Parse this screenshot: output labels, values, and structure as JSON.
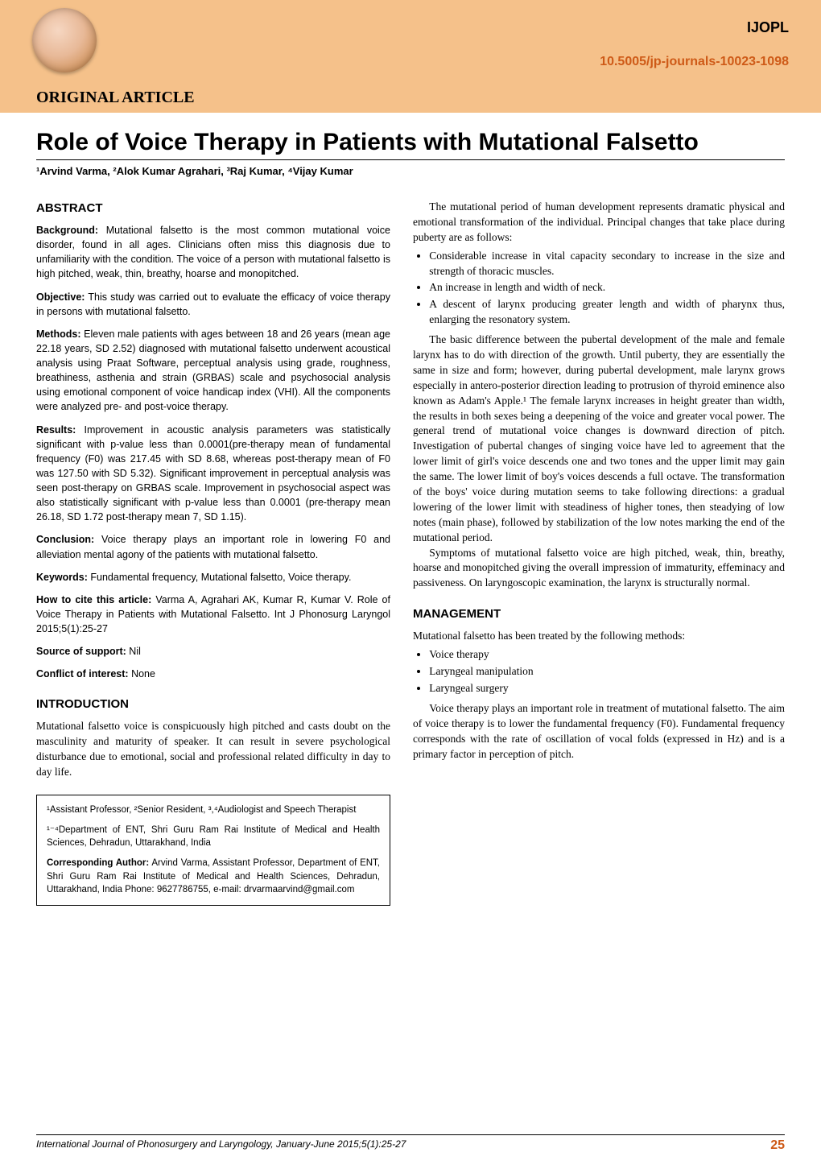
{
  "header": {
    "journal_abbrev": "IJOPL",
    "doi": "10.5005/jp-journals-10023-1098",
    "article_type": "ORIGINAL ARTICLE",
    "band_color": "#f5c18a",
    "doi_color": "#ce5a17"
  },
  "title": "Role of Voice Therapy in Patients with Mutational Falsetto",
  "authors_line": "¹Arvind Varma, ²Alok Kumar Agrahari, ³Raj Kumar, ⁴Vijay Kumar",
  "abstract": {
    "head": "ABSTRACT",
    "background_label": "Background:",
    "background": "Mutational falsetto is the most common mutational voice disorder, found in all ages. Clinicians often miss this diagnosis due to unfamiliarity with the condition. The voice of a person with mutational falsetto is high pitched, weak, thin, breathy, hoarse and monopitched.",
    "objective_label": "Objective:",
    "objective": "This study was carried out to evaluate the efficacy of voice therapy in persons with mutational falsetto.",
    "methods_label": "Methods:",
    "methods": "Eleven male patients with ages between 18 and 26 years (mean age 22.18 years, SD 2.52) diagnosed with mutational falsetto underwent acoustical analysis using Praat Software, perceptual analysis using grade, roughness, breathiness, asthenia and strain (GRBAS) scale and psychosocial analysis using emotional component of voice handicap index (VHI). All the components were analyzed pre- and post-voice therapy.",
    "results_label": "Results:",
    "results": "Improvement in acoustic analysis parameters was statistically significant with p-value less than 0.0001(pre-therapy mean of fundamental frequency (F0) was 217.45 with SD 8.68, whereas post-therapy mean of F0 was 127.50 with SD 5.32). Significant improvement in perceptual analysis was seen post-therapy on GRBAS scale. Improvement in psychosocial aspect was also statistically significant with p-value less than 0.0001 (pre-therapy mean 26.18, SD 1.72 post-therapy mean 7, SD 1.15).",
    "conclusion_label": "Conclusion:",
    "conclusion": "Voice therapy plays an important role in lowering F0 and alleviation mental agony of the patients with mutational falsetto.",
    "keywords_label": "Keywords:",
    "keywords": "Fundamental frequency, Mutational falsetto, Voice therapy.",
    "howto_label": "How to cite this article:",
    "howto": "Varma A, Agrahari AK, Kumar R, Kumar V. Role of Voice Therapy in Patients with Mutational Falsetto. Int J Phonosurg Laryngol 2015;5(1):25-27",
    "support_label": "Source of support:",
    "support": "Nil",
    "conflict_label": "Conflict of interest:",
    "conflict": "None"
  },
  "introduction": {
    "head": "INTRODUCTION",
    "p1": "Mutational falsetto voice is conspicuously high pitched and casts doubt on the masculinity and maturity of speaker. It can result in severe psychological disturbance due to emotional, social and professional related difficulty in day to day life."
  },
  "affiliations": {
    "line1": "¹Assistant Professor, ²Senior Resident, ³,⁴Audiologist and Speech Therapist",
    "line2": "¹⁻⁴Department of ENT, Shri Guru Ram Rai Institute of Medical and Health Sciences, Dehradun, Uttarakhand, India",
    "corr_label": "Corresponding Author:",
    "corr": "Arvind Varma, Assistant Professor, Department of ENT, Shri Guru Ram Rai Institute of Medical and Health Sciences, Dehradun, Uttarakhand, India Phone: 9627786755, e-mail: drvarmaarvind@gmail.com"
  },
  "right_col": {
    "p1": "The mutational period of human development represents dramatic physical and emotional transformation of the individual. Principal changes that take place during puberty are as follows:",
    "bullets1": [
      "Considerable increase in vital capacity secondary to increase in the size and strength of thoracic muscles.",
      "An increase in length and width of neck.",
      "A descent of larynx producing greater length and width of pharynx thus, enlarging the resonatory system."
    ],
    "p2": "The basic difference between the pubertal development of the male and female larynx has to do with direction of the growth. Until puberty, they are essentially the same in size and form; however, during pubertal development, male larynx grows especially in antero-posterior direction leading to protrusion of thyroid eminence also known as Adam's Apple.¹ The female larynx increases in height greater than width, the results in both sexes being a deepening of the voice and greater vocal power. The general trend of mutational voice changes is downward direction of pitch. Investigation of pubertal changes of singing voice have led to agreement that the lower limit of girl's voice descends one and two tones and the upper limit may gain the same. The lower limit of boy's voices descends a full octave. The transformation of the boys' voice during mutation seems to take following directions: a gradual lowering of the lower limit with steadiness of higher tones, then steadying of low notes (main phase), followed by stabilization of the low notes marking the end of the mutational period.",
    "p3": "Symptoms of mutational falsetto voice are high pitched, weak, thin, breathy, hoarse and monopitched giving the overall impression of immaturity, effeminacy and passiveness. On laryngoscopic examination, the larynx is structurally normal.",
    "mgmt_head": "MANAGEMENT",
    "mgmt_p1": "Mutational falsetto has been treated by the following methods:",
    "mgmt_bullets": [
      "Voice therapy",
      "Laryngeal manipulation",
      "Laryngeal surgery"
    ],
    "mgmt_p2": "Voice therapy plays an important role in treatment of mutational falsetto. The aim of voice therapy is to lower the fundamental frequency (F0). Fundamental frequency corresponds with the rate of oscillation of vocal folds (expressed in Hz) and is a primary factor in perception of pitch."
  },
  "footer": {
    "journal_line": "International Journal of Phonosurgery and Laryngology, January-June 2015;5(1):25-27",
    "page_num": "25"
  }
}
